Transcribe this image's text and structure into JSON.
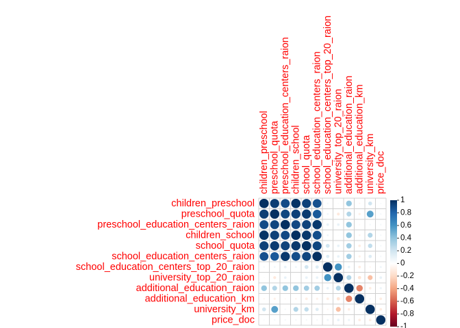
{
  "chart_data": {
    "type": "heatmap",
    "style": "circle",
    "layout": "corrplot-full",
    "label_color": "#ff0000",
    "variables": [
      "children_preschool",
      "preschool_quota",
      "preschool_education_centers_raion",
      "children_school",
      "school_quota",
      "school_education_centers_raion",
      "school_education_centers_top_20_raion",
      "university_top_20_raion",
      "additional_education_raion",
      "additional_education_km",
      "university_km",
      "price_doc"
    ],
    "matrix": [
      [
        1.0,
        0.95,
        0.9,
        0.99,
        0.94,
        0.88,
        0.05,
        0.03,
        0.4,
        -0.05,
        0.2,
        0.04
      ],
      [
        0.95,
        1.0,
        0.92,
        0.94,
        0.96,
        0.85,
        0.06,
        -0.12,
        0.3,
        -0.08,
        0.55,
        0.05
      ],
      [
        0.9,
        0.92,
        1.0,
        0.91,
        0.93,
        0.97,
        0.1,
        0.1,
        0.4,
        -0.04,
        0.05,
        0.05
      ],
      [
        0.99,
        0.94,
        0.91,
        1.0,
        0.97,
        0.89,
        0.07,
        0.02,
        0.4,
        -0.06,
        0.3,
        0.05
      ],
      [
        0.94,
        0.96,
        0.93,
        0.97,
        1.0,
        0.92,
        0.2,
        0.1,
        0.35,
        -0.1,
        0.25,
        0.05
      ],
      [
        0.88,
        0.85,
        0.97,
        0.89,
        0.92,
        1.0,
        0.15,
        0.1,
        0.35,
        -0.08,
        0.15,
        0.05
      ],
      [
        0.05,
        0.06,
        0.1,
        0.07,
        0.2,
        0.15,
        1.0,
        0.6,
        0.1,
        -0.1,
        -0.05,
        0.07
      ],
      [
        0.03,
        -0.12,
        0.1,
        0.02,
        0.1,
        0.1,
        0.6,
        1.0,
        0.3,
        -0.15,
        -0.3,
        0.1
      ],
      [
        0.4,
        0.3,
        0.4,
        0.4,
        0.35,
        0.35,
        0.1,
        0.3,
        1.0,
        -0.5,
        -0.1,
        0.08
      ],
      [
        -0.05,
        -0.08,
        -0.04,
        -0.06,
        -0.1,
        -0.08,
        -0.1,
        -0.15,
        -0.5,
        1.0,
        0.05,
        -0.1
      ],
      [
        0.2,
        0.55,
        0.05,
        0.3,
        0.25,
        0.15,
        -0.05,
        -0.3,
        -0.1,
        0.05,
        1.0,
        -0.1
      ],
      [
        0.04,
        0.05,
        0.05,
        0.05,
        0.05,
        0.05,
        0.07,
        0.1,
        0.08,
        -0.1,
        -0.1,
        1.0
      ]
    ],
    "colorbar": {
      "range": [
        -1,
        1
      ],
      "ticks": [
        "1",
        "0.8",
        "0.6",
        "0.4",
        "0.2",
        "0",
        "-0.2",
        "-0.4",
        "-0.6",
        "-0.8",
        "-1"
      ],
      "palette": [
        "#67001F",
        "#B2182B",
        "#D6604D",
        "#F4A582",
        "#FDDBC7",
        "#FFFFFF",
        "#D1E5F0",
        "#92C5DE",
        "#4393C3",
        "#2166AC",
        "#053061"
      ]
    }
  }
}
